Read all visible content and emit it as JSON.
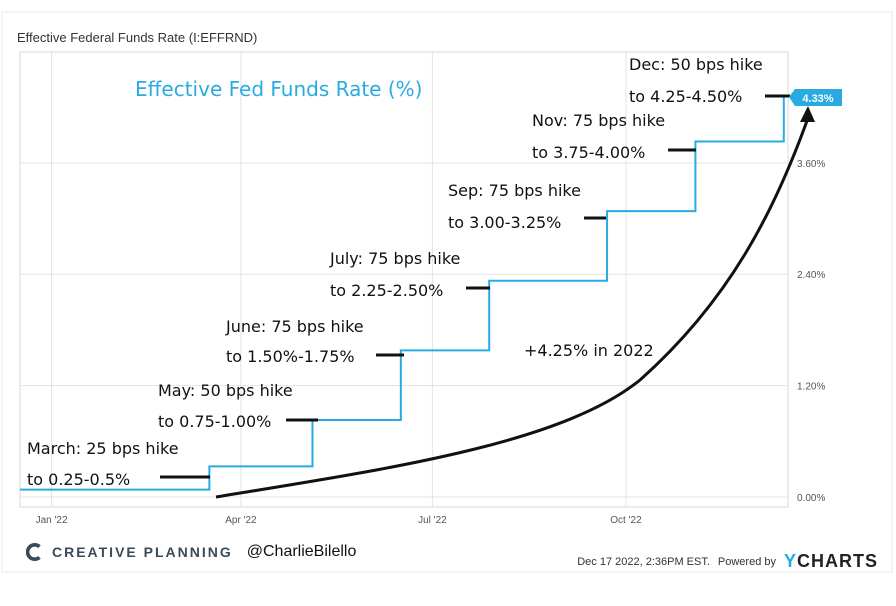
{
  "header": {
    "title": "Effective Federal Funds Rate (I:EFFRND)"
  },
  "chart_data": {
    "type": "line",
    "title": "Effective Fed Funds Rate (%)",
    "x_ticks": [
      "Jan '22",
      "Apr '22",
      "Jul '22",
      "Oct '22"
    ],
    "y_ticks": [
      "0.00%",
      "1.20%",
      "2.40%",
      "3.60%"
    ],
    "ylim": [
      0,
      4.6
    ],
    "grid": true,
    "series": [
      {
        "values": [
          {
            "x": "2021-12-17",
            "y": 0.08
          },
          {
            "x": "2022-03-16",
            "y": 0.08
          },
          {
            "x": "2022-03-17",
            "y": 0.33
          },
          {
            "x": "2022-05-04",
            "y": 0.33
          },
          {
            "x": "2022-05-05",
            "y": 0.83
          },
          {
            "x": "2022-06-15",
            "y": 0.83
          },
          {
            "x": "2022-06-16",
            "y": 1.58
          },
          {
            "x": "2022-07-27",
            "y": 1.58
          },
          {
            "x": "2022-07-28",
            "y": 2.33
          },
          {
            "x": "2022-09-21",
            "y": 2.33
          },
          {
            "x": "2022-09-22",
            "y": 3.08
          },
          {
            "x": "2022-11-02",
            "y": 3.08
          },
          {
            "x": "2022-11-03",
            "y": 3.83
          },
          {
            "x": "2022-12-14",
            "y": 3.83
          },
          {
            "x": "2022-12-15",
            "y": 4.33
          }
        ]
      }
    ],
    "end_value_label": "4.33%",
    "annotations": [
      {
        "line1": "March: 25 bps hike",
        "line2": "to 0.25-0.5%"
      },
      {
        "line1": "May: 50 bps hike",
        "line2": "to 0.75-1.00%"
      },
      {
        "line1": "June: 75 bps hike",
        "line2": "to 1.50%-1.75%"
      },
      {
        "line1": "July: 75 bps hike",
        "line2": "to 2.25-2.50%"
      },
      {
        "line1": "Sep: 75 bps hike",
        "line2": "to 3.00-3.25%"
      },
      {
        "line1": "Nov: 75 bps hike",
        "line2": "to 3.75-4.00%"
      },
      {
        "line1": "Dec: 50 bps hike",
        "line2": "to 4.25-4.50%"
      }
    ],
    "curve_label": "+4.25% in 2022"
  },
  "footer": {
    "brand": "CREATIVE PLANNING",
    "handle": "@CharlieBilello",
    "timestamp": "Dec 17 2022, 2:36PM EST.",
    "powered_by": "Powered by",
    "ycharts_y": "Y",
    "ycharts_rest": "CHARTS"
  },
  "colors": {
    "series": "#29abe2",
    "curve": "#111111",
    "grid": "#e3e3e3",
    "axis_text": "#555555"
  }
}
